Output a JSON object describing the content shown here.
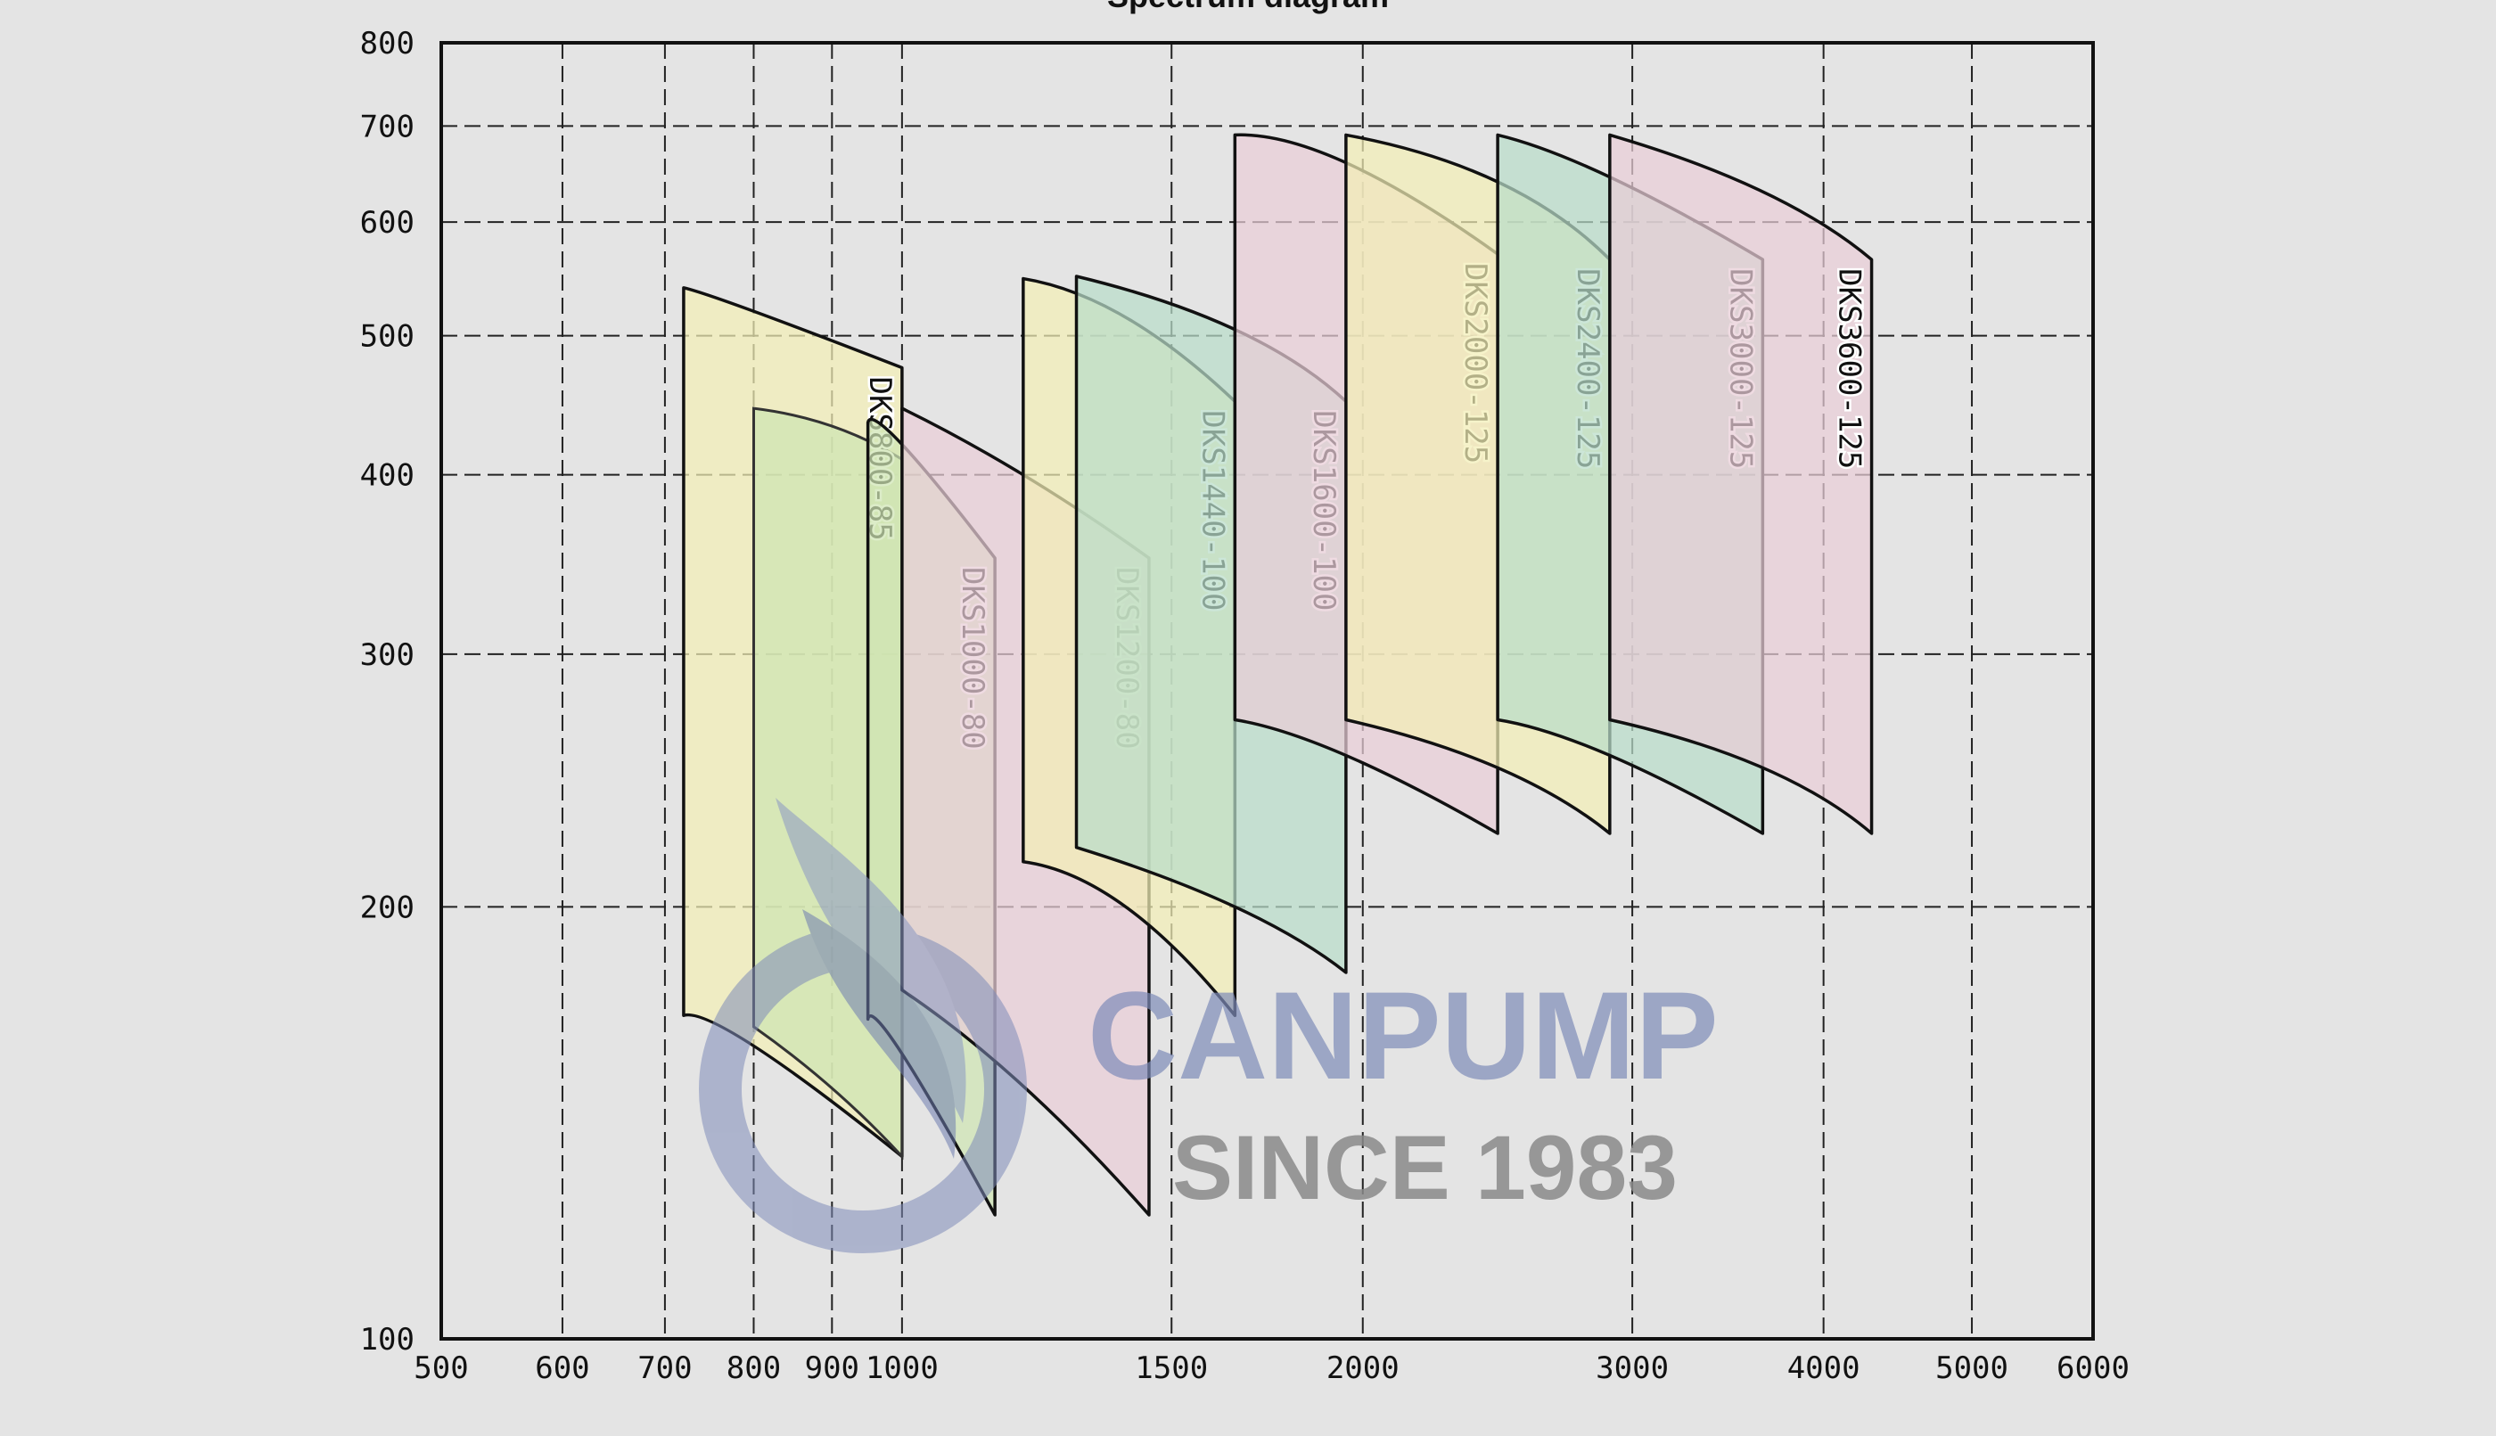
{
  "chart_data": {
    "type": "area",
    "title": "Spectrum diagram",
    "xlabel": "",
    "ylabel": "",
    "xscale": "log",
    "yscale": "log",
    "xlim": [
      500,
      6000
    ],
    "ylim": [
      100,
      800
    ],
    "xticks": [
      500,
      600,
      700,
      800,
      900,
      1000,
      1500,
      2000,
      3000,
      4000,
      5000,
      6000
    ],
    "yticks": [
      100,
      200,
      300,
      400,
      500,
      600,
      700,
      800
    ],
    "grid": true,
    "series": [
      {
        "name": "DKS800-85",
        "color": "#f2eeb5",
        "q_min": 720,
        "q_mid": 800,
        "q_max": 1000,
        "h_top_left": 540,
        "h_top_mid": 520,
        "h_top_right": 475,
        "h_bot_left": 168,
        "h_bot_mid": 160,
        "h_bot_right": 134,
        "inner": {
          "q_left": 800,
          "q_right": 1000,
          "h_top_left": 445,
          "h_top_right": 410,
          "h_bot_left": 165,
          "h_bot_right": 134
        }
      },
      {
        "name": "DKS1000-80",
        "color": "#cfe5b3",
        "q_min": 950,
        "q_mid": 1000,
        "q_max": 1150,
        "h_top_left": 435,
        "h_top_mid": 420,
        "h_top_right": 350,
        "h_bot_left": 167,
        "h_bot_mid": 158,
        "h_bot_right": 122
      },
      {
        "name": "DKS1200-80",
        "color": "#e9cdd7",
        "q_min": 1000,
        "q_mid": 1200,
        "q_max": 1450,
        "h_top_left": 445,
        "h_top_mid": 400,
        "h_top_right": 350,
        "h_bot_left": 175,
        "h_bot_mid": 150,
        "h_bot_right": 122
      },
      {
        "name": "DKS1440-100",
        "color": "#f2eeb5",
        "q_min": 1200,
        "q_mid": 1400,
        "q_max": 1650,
        "h_top_left": 548,
        "h_top_mid": 515,
        "h_top_right": 450,
        "h_bot_left": 215,
        "h_bot_mid": 200,
        "h_bot_right": 168
      },
      {
        "name": "DKS1600-100",
        "color": "#b8dcc9",
        "q_min": 1300,
        "q_mid": 1650,
        "q_max": 1950,
        "h_top_left": 550,
        "h_top_mid": 505,
        "h_top_right": 450,
        "h_bot_left": 220,
        "h_bot_mid": 200,
        "h_bot_right": 180
      },
      {
        "name": "DKS2000-125",
        "color": "#e9cdd7",
        "q_min": 1650,
        "q_mid": 1950,
        "q_max": 2450,
        "h_top_left": 690,
        "h_top_mid": 660,
        "h_top_right": 570,
        "h_bot_left": 270,
        "h_bot_mid": 255,
        "h_bot_right": 225
      },
      {
        "name": "DKS2400-125",
        "color": "#f2eeb5",
        "q_min": 1950,
        "q_mid": 2450,
        "q_max": 2900,
        "h_top_left": 690,
        "h_top_mid": 640,
        "h_top_right": 565,
        "h_bot_left": 270,
        "h_bot_mid": 250,
        "h_bot_right": 225
      },
      {
        "name": "DKS3000-125",
        "color": "#b8dcc9",
        "q_min": 2450,
        "q_mid": 2900,
        "q_max": 3650,
        "h_top_left": 690,
        "h_top_mid": 645,
        "h_top_right": 565,
        "h_bot_left": 270,
        "h_bot_mid": 255,
        "h_bot_right": 225
      },
      {
        "name": "DKS3600-125",
        "color": "#e9cdd7",
        "q_min": 2900,
        "q_mid": 3650,
        "q_max": 4300,
        "h_top_left": 690,
        "h_top_mid": 630,
        "h_top_right": 565,
        "h_bot_left": 270,
        "h_bot_mid": 250,
        "h_bot_right": 225
      }
    ]
  },
  "watermark": {
    "brand": "CANPUMP",
    "tagline": "SINCE 1983",
    "logo_icon": "phoenix-swirl-icon"
  }
}
